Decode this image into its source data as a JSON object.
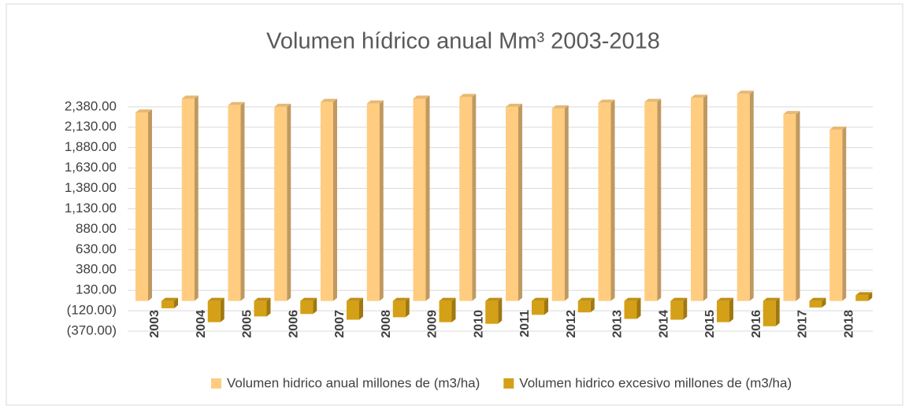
{
  "chart_data": {
    "type": "bar3d",
    "title": "Volumen hídrico anual Mm³ 2003-2018",
    "categories": [
      "2003",
      "2004",
      "2005",
      "2006",
      "2007",
      "2008",
      "2009",
      "2010",
      "2011",
      "2012",
      "2013",
      "2014",
      "2015",
      "2016",
      "2017",
      "2018"
    ],
    "series": [
      {
        "name": "Volumen hidrico anual millones de (m3/ha)",
        "color": "#ffcc80",
        "values": [
          2310,
          2480,
          2400,
          2380,
          2440,
          2420,
          2480,
          2500,
          2380,
          2360,
          2430,
          2440,
          2490,
          2540,
          2290,
          2100
        ]
      },
      {
        "name": "Volumen hidrico excesivo millones de (m3/ha)",
        "color": "#d4a017",
        "values": [
          -90,
          -260,
          -190,
          -160,
          -230,
          -200,
          -260,
          -280,
          -170,
          -140,
          -220,
          -230,
          -260,
          -310,
          -80,
          70
        ]
      }
    ],
    "ylim": [
      -370,
      2600
    ],
    "yticks": [
      {
        "value": -370,
        "label": "(370.00)"
      },
      {
        "value": -120,
        "label": "(120.00)"
      },
      {
        "value": 130,
        "label": "130.00"
      },
      {
        "value": 380,
        "label": "380.00"
      },
      {
        "value": 630,
        "label": "630.00"
      },
      {
        "value": 880,
        "label": "880.00"
      },
      {
        "value": 1130,
        "label": "1,130.00"
      },
      {
        "value": 1380,
        "label": "1,380.00"
      },
      {
        "value": 1630,
        "label": "1,630.00"
      },
      {
        "value": 1880,
        "label": "1,880.00"
      },
      {
        "value": 2130,
        "label": "2,130.00"
      },
      {
        "value": 2380,
        "label": "2,380.00"
      }
    ],
    "grid": true,
    "legend": "bottom"
  }
}
